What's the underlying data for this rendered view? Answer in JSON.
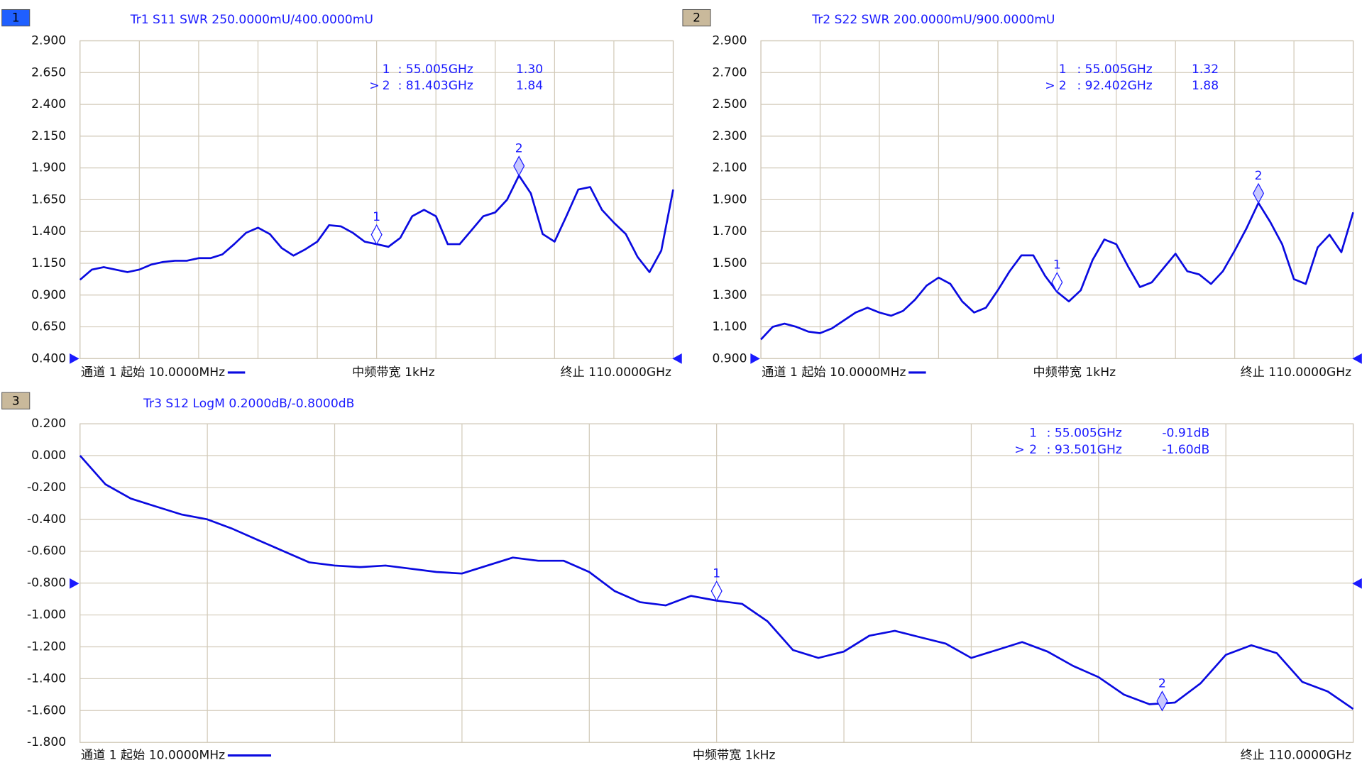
{
  "chart_data": [
    {
      "type": "line",
      "badge": "1",
      "title": "Tr1 S11 SWR 250.0000mU/400.0000mU",
      "color": "#0a0ae0",
      "x": [
        0.01,
        2.2,
        4.4,
        6.6,
        8.8,
        11,
        13.2,
        15.4,
        17.6,
        19.8,
        22,
        24.2,
        26.4,
        28.6,
        30.8,
        33,
        35.2,
        37.4,
        39.6,
        41.8,
        44,
        46.2,
        48.4,
        50.6,
        52.8,
        55,
        57.2,
        59.4,
        61.6,
        63.8,
        66,
        68.2,
        70.4,
        72.6,
        74.8,
        77,
        79.2,
        81.4,
        83.6,
        85.8,
        88,
        90.2,
        92.4,
        94.6,
        96.8,
        99,
        101.2,
        103.4,
        105.6,
        107.8,
        110
      ],
      "values": [
        1.02,
        1.1,
        1.12,
        1.1,
        1.08,
        1.1,
        1.14,
        1.16,
        1.17,
        1.17,
        1.19,
        1.19,
        1.22,
        1.3,
        1.39,
        1.43,
        1.38,
        1.27,
        1.21,
        1.26,
        1.32,
        1.45,
        1.44,
        1.39,
        1.32,
        1.3,
        1.28,
        1.35,
        1.52,
        1.57,
        1.52,
        1.3,
        1.3,
        1.41,
        1.52,
        1.55,
        1.65,
        1.84,
        1.7,
        1.38,
        1.32,
        1.52,
        1.73,
        1.75,
        1.57,
        1.47,
        1.38,
        1.2,
        1.08,
        1.25,
        1.73
      ],
      "xlim": [
        0.01,
        110
      ],
      "ylim": [
        0.4,
        2.9
      ],
      "yticks": [
        {
          "value": 0.4,
          "label": "0.400"
        },
        {
          "value": 0.65,
          "label": "0.650"
        },
        {
          "value": 0.9,
          "label": "0.900"
        },
        {
          "value": 1.15,
          "label": "1.150"
        },
        {
          "value": 1.4,
          "label": "1.400"
        },
        {
          "value": 1.65,
          "label": "1.650"
        },
        {
          "value": 1.9,
          "label": "1.900"
        },
        {
          "value": 2.15,
          "label": "2.150"
        },
        {
          "value": 2.4,
          "label": "2.400"
        },
        {
          "value": 2.65,
          "label": "2.650"
        },
        {
          "value": 2.9,
          "label": "2.900"
        }
      ],
      "markers": [
        {
          "name": "1",
          "x": 55.005,
          "x_label": ": 55.005GHz",
          "value": 1.3,
          "value_label": "1.30"
        },
        {
          "name": "2",
          "pointer": ">",
          "x": 81.403,
          "x_label": ": 81.403GHz",
          "value": 1.84,
          "value_label": "1.84"
        }
      ],
      "footer": [
        "通道 1 起始 10.0000MHz",
        "中频带宽 1kHz",
        "终止 110.0000GHz"
      ]
    },
    {
      "type": "line",
      "badge": "2",
      "title": "Tr2 S22 SWR 200.0000mU/900.0000mU",
      "color": "#0a0ae0",
      "x": [
        0.01,
        2.2,
        4.4,
        6.6,
        8.8,
        11,
        13.2,
        15.4,
        17.6,
        19.8,
        22,
        24.2,
        26.4,
        28.6,
        30.8,
        33,
        35.2,
        37.4,
        39.6,
        41.8,
        44,
        46.2,
        48.4,
        50.6,
        52.8,
        55,
        57.2,
        59.4,
        61.6,
        63.8,
        66,
        68.2,
        70.4,
        72.6,
        74.8,
        77,
        79.2,
        81.4,
        83.6,
        85.8,
        88,
        90.2,
        92.4,
        94.6,
        96.8,
        99,
        101.2,
        103.4,
        105.6,
        107.8,
        110
      ],
      "values": [
        1.02,
        1.1,
        1.12,
        1.1,
        1.07,
        1.06,
        1.09,
        1.14,
        1.19,
        1.22,
        1.19,
        1.17,
        1.2,
        1.27,
        1.36,
        1.41,
        1.37,
        1.26,
        1.19,
        1.22,
        1.33,
        1.45,
        1.55,
        1.55,
        1.42,
        1.32,
        1.26,
        1.33,
        1.52,
        1.65,
        1.62,
        1.48,
        1.35,
        1.38,
        1.47,
        1.56,
        1.45,
        1.43,
        1.37,
        1.45,
        1.58,
        1.72,
        1.88,
        1.76,
        1.62,
        1.4,
        1.37,
        1.6,
        1.68,
        1.57,
        1.82
      ],
      "xlim": [
        0.01,
        110
      ],
      "ylim": [
        0.9,
        2.9
      ],
      "yticks": [
        {
          "value": 0.9,
          "label": "0.900"
        },
        {
          "value": 1.1,
          "label": "1.100"
        },
        {
          "value": 1.3,
          "label": "1.300"
        },
        {
          "value": 1.5,
          "label": "1.500"
        },
        {
          "value": 1.7,
          "label": "1.700"
        },
        {
          "value": 1.9,
          "label": "1.900"
        },
        {
          "value": 2.1,
          "label": "2.100"
        },
        {
          "value": 2.3,
          "label": "2.300"
        },
        {
          "value": 2.5,
          "label": "2.500"
        },
        {
          "value": 2.7,
          "label": "2.700"
        },
        {
          "value": 2.9,
          "label": "2.900"
        }
      ],
      "markers": [
        {
          "name": "1",
          "x": 55.005,
          "x_label": ": 55.005GHz",
          "value": 1.32,
          "value_label": "1.32"
        },
        {
          "name": "2",
          "pointer": ">",
          "x": 92.402,
          "x_label": ": 92.402GHz",
          "value": 1.88,
          "value_label": "1.88"
        }
      ],
      "footer": [
        "通道 1 起始 10.0000MHz",
        "中频带宽 1kHz",
        "终止 110.0000GHz"
      ]
    },
    {
      "type": "line",
      "badge": "3",
      "title": "Tr3 S12 LogM 0.2000dB/-0.8000dB",
      "color": "#0a0ae0",
      "x": [
        0.01,
        2.2,
        4.4,
        6.6,
        8.8,
        11,
        13.2,
        15.4,
        17.6,
        19.8,
        22,
        24.2,
        26.4,
        28.6,
        30.8,
        33,
        35.2,
        37.4,
        39.6,
        41.8,
        44,
        46.2,
        48.4,
        50.6,
        52.8,
        55,
        57.2,
        59.4,
        61.6,
        63.8,
        66,
        68.2,
        70.4,
        72.6,
        74.8,
        77,
        79.2,
        81.4,
        83.6,
        85.8,
        88,
        90.2,
        92.4,
        94.6,
        96.8,
        99,
        101.2,
        103.4,
        105.6,
        107.8,
        110
      ],
      "values": [
        0.0,
        -0.18,
        -0.27,
        -0.32,
        -0.37,
        -0.4,
        -0.46,
        -0.53,
        -0.6,
        -0.67,
        -0.69,
        -0.7,
        -0.69,
        -0.71,
        -0.73,
        -0.74,
        -0.69,
        -0.64,
        -0.66,
        -0.66,
        -0.73,
        -0.85,
        -0.92,
        -0.94,
        -0.88,
        -0.91,
        -0.93,
        -1.04,
        -1.22,
        -1.27,
        -1.23,
        -1.13,
        -1.1,
        -1.14,
        -1.18,
        -1.27,
        -1.22,
        -1.17,
        -1.23,
        -1.32,
        -1.39,
        -1.5,
        -1.56,
        -1.55,
        -1.43,
        -1.25,
        -1.19,
        -1.24,
        -1.42,
        -1.48,
        -1.59
      ],
      "xlim": [
        0.01,
        110
      ],
      "ylim": [
        -1.8,
        0.2
      ],
      "yticks": [
        {
          "value": -1.8,
          "label": "-1.800"
        },
        {
          "value": -1.6,
          "label": "-1.600"
        },
        {
          "value": -1.4,
          "label": "-1.400"
        },
        {
          "value": -1.2,
          "label": "-1.200"
        },
        {
          "value": -1.0,
          "label": "-1.000"
        },
        {
          "value": -0.8,
          "label": "-0.800"
        },
        {
          "value": -0.6,
          "label": "-0.600"
        },
        {
          "value": -0.4,
          "label": "-0.400"
        },
        {
          "value": -0.2,
          "label": "-0.200"
        },
        {
          "value": 0,
          "label": "0.000"
        },
        {
          "value": 0.2,
          "label": "0.200"
        }
      ],
      "markers": [
        {
          "name": "1",
          "x": 55.005,
          "x_label": ": 55.005GHz",
          "value": -0.91,
          "value_label": "-0.91dB"
        },
        {
          "name": "2",
          "pointer": ">",
          "x": 93.501,
          "x_label": ": 93.501GHz",
          "value": -1.6,
          "value_label": "-1.60dB"
        }
      ],
      "footer": [
        "通道 1 起始 10.0000MHz",
        "中频带宽 1kHz",
        "终止 110.0000GHz"
      ]
    }
  ]
}
